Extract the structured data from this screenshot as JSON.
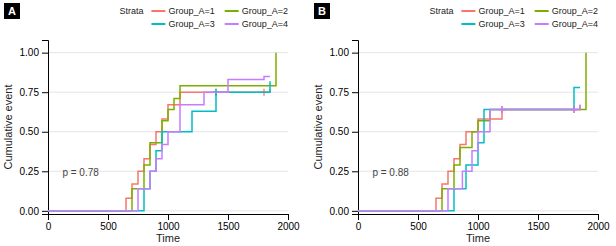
{
  "chart_data": [
    {
      "type": "step",
      "title": "A",
      "annotations": [
        "p = 0.78"
      ],
      "xlabel": "Time",
      "ylabel": "Cumulative event",
      "legend_title": "Strata",
      "legend": "top right",
      "grid": "y",
      "marker": "plus",
      "xlim": [
        0,
        2000
      ],
      "xticks": [
        0,
        500,
        1000,
        1500,
        2000
      ],
      "ylim": [
        -0.02,
        1.08
      ],
      "yticks": [
        {
          "value": 0.0,
          "label": "0.00"
        },
        {
          "value": 0.25,
          "label": "0.25"
        },
        {
          "value": 0.5,
          "label": "0.50"
        },
        {
          "value": 0.75,
          "label": "0.75"
        },
        {
          "value": 1.0,
          "label": "1.00"
        }
      ],
      "series": [
        {
          "name": "Group_A=1",
          "color": "#F8766D",
          "x": [
            0,
            600,
            650,
            700,
            750,
            800,
            850,
            900,
            950,
            1000,
            1100,
            1200,
            1400,
            1800,
            1850
          ],
          "values": [
            0,
            0,
            0.08,
            0.17,
            0.25,
            0.33,
            0.42,
            0.5,
            0.58,
            0.67,
            0.75,
            0.75,
            0.75,
            0.75,
            0.77
          ],
          "censor_x": [
            1400,
            1800
          ],
          "censor_values": [
            0.75,
            0.75
          ]
        },
        {
          "name": "Group_A=2",
          "color": "#7CAE00",
          "x": [
            0,
            650,
            700,
            750,
            800,
            850,
            900,
            950,
            1000,
            1050,
            1100,
            1850,
            1900
          ],
          "values": [
            0,
            0,
            0.14,
            0.14,
            0.29,
            0.43,
            0.43,
            0.57,
            0.64,
            0.71,
            0.79,
            0.79,
            1.0
          ],
          "censor_x": [],
          "censor_values": []
        },
        {
          "name": "Group_A=3",
          "color": "#00BFC4",
          "x": [
            0,
            700,
            750,
            800,
            850,
            900,
            950,
            1000,
            1200,
            1400,
            1800,
            1850
          ],
          "values": [
            0,
            0,
            0.0,
            0.14,
            0.25,
            0.38,
            0.5,
            0.5,
            0.63,
            0.75,
            0.75,
            0.82
          ],
          "censor_x": [
            1400
          ],
          "censor_values": [
            0.75
          ]
        },
        {
          "name": "Group_A=4",
          "color": "#C77CFF",
          "x": [
            0,
            620,
            700,
            750,
            800,
            850,
            900,
            950,
            1000,
            1100,
            1300,
            1500,
            1800,
            1850
          ],
          "values": [
            0,
            0,
            0.0,
            0.14,
            0.14,
            0.25,
            0.33,
            0.42,
            0.5,
            0.67,
            0.75,
            0.83,
            0.85,
            0.85
          ],
          "censor_x": [],
          "censor_values": []
        }
      ]
    },
    {
      "type": "step",
      "title": "B",
      "annotations": [
        "p = 0.88"
      ],
      "xlabel": "Time",
      "ylabel": "Cumulative event",
      "legend_title": "Strata",
      "legend": "top right",
      "grid": "y",
      "marker": "plus",
      "xlim": [
        0,
        2000
      ],
      "xticks": [
        0,
        500,
        1000,
        1500,
        2000
      ],
      "ylim": [
        -0.02,
        1.08
      ],
      "yticks": [
        {
          "value": 0.0,
          "label": "0.00"
        },
        {
          "value": 0.25,
          "label": "0.25"
        },
        {
          "value": 0.5,
          "label": "0.50"
        },
        {
          "value": 0.75,
          "label": "0.75"
        },
        {
          "value": 1.0,
          "label": "1.00"
        }
      ],
      "series": [
        {
          "name": "Group_A=1",
          "color": "#F8766D",
          "x": [
            0,
            600,
            650,
            700,
            750,
            800,
            850,
            900,
            950,
            1000,
            1100,
            1200,
            1800,
            1850
          ],
          "values": [
            0,
            0,
            0.08,
            0.17,
            0.25,
            0.33,
            0.42,
            0.5,
            0.5,
            0.58,
            0.58,
            0.64,
            0.64,
            0.67
          ],
          "censor_x": [
            1200,
            1800
          ],
          "censor_values": [
            0.64,
            0.64
          ]
        },
        {
          "name": "Group_A=2",
          "color": "#7CAE00",
          "x": [
            0,
            650,
            700,
            750,
            800,
            850,
            900,
            950,
            1000,
            1100,
            1850,
            1900
          ],
          "values": [
            0,
            0,
            0.14,
            0.14,
            0.29,
            0.4,
            0.4,
            0.5,
            0.57,
            0.64,
            0.64,
            1.0
          ],
          "censor_x": [],
          "censor_values": []
        },
        {
          "name": "Group_A=3",
          "color": "#00BFC4",
          "x": [
            0,
            680,
            720,
            800,
            850,
            900,
            1000,
            1050,
            1400,
            1500,
            1800,
            1850
          ],
          "values": [
            0,
            0,
            0.0,
            0.14,
            0.14,
            0.29,
            0.43,
            0.64,
            0.64,
            0.64,
            0.78,
            0.78
          ],
          "censor_x": [],
          "censor_values": []
        },
        {
          "name": "Group_A=4",
          "color": "#C77CFF",
          "x": [
            0,
            620,
            700,
            750,
            800,
            870,
            950,
            1000,
            1100,
            1200,
            1800,
            1850
          ],
          "values": [
            0,
            0,
            0.0,
            0.14,
            0.14,
            0.25,
            0.38,
            0.5,
            0.64,
            0.64,
            0.64,
            0.67
          ],
          "censor_x": [
            1200,
            1800
          ],
          "censor_values": [
            0.64,
            0.64
          ]
        }
      ]
    }
  ]
}
